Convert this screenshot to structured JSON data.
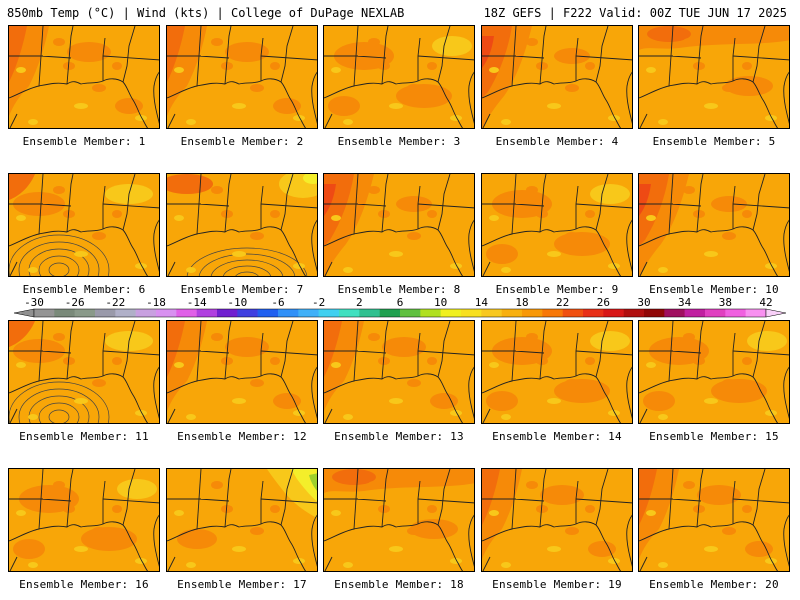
{
  "header": {
    "left": "850mb Temp (°C) | Wind (kts) | College of DuPage NEXLAB",
    "right": "18Z GEFS | F222 Valid: 00Z TUE JUN 17 2025"
  },
  "members": [
    {
      "label": "Ensemble Member: 1",
      "scheme": "warm-west"
    },
    {
      "label": "Ensemble Member: 2",
      "scheme": "warm-west"
    },
    {
      "label": "Ensemble Member: 3",
      "scheme": "mild"
    },
    {
      "label": "Ensemble Member: 4",
      "scheme": "hot-west"
    },
    {
      "label": "Ensemble Member: 5",
      "scheme": "warm-north"
    },
    {
      "label": "Ensemble Member: 6",
      "scheme": "low-circles"
    },
    {
      "label": "Ensemble Member: 7",
      "scheme": "yellow-ne-low"
    },
    {
      "label": "Ensemble Member: 8",
      "scheme": "hot-west"
    },
    {
      "label": "Ensemble Member: 9",
      "scheme": "mild"
    },
    {
      "label": "Ensemble Member: 10",
      "scheme": "hot-west"
    },
    {
      "label": "Ensemble Member: 11",
      "scheme": "low-circles"
    },
    {
      "label": "Ensemble Member: 12",
      "scheme": "warm-west"
    },
    {
      "label": "Ensemble Member: 13",
      "scheme": "warm-west"
    },
    {
      "label": "Ensemble Member: 14",
      "scheme": "mild"
    },
    {
      "label": "Ensemble Member: 15",
      "scheme": "mild"
    },
    {
      "label": "Ensemble Member: 16",
      "scheme": "mild"
    },
    {
      "label": "Ensemble Member: 17",
      "scheme": "yellow-ne"
    },
    {
      "label": "Ensemble Member: 18",
      "scheme": "warm-north"
    },
    {
      "label": "Ensemble Member: 19",
      "scheme": "warm-west"
    },
    {
      "label": "Ensemble Member: 20",
      "scheme": "warm-west"
    }
  ],
  "colorbar": {
    "ticks": [
      "-30",
      "-26",
      "-22",
      "-18",
      "-14",
      "-10",
      "-6",
      "-2",
      "2",
      "6",
      "10",
      "14",
      "18",
      "22",
      "26",
      "30",
      "34",
      "38",
      "42"
    ],
    "colors": [
      "#949494",
      "#7a8a7a",
      "#8a9a8a",
      "#9a9aaa",
      "#b0b0c8",
      "#c8a0e0",
      "#d890f0",
      "#e060e8",
      "#b040e0",
      "#7020d0",
      "#4040e0",
      "#2060f0",
      "#3090f8",
      "#40b0f8",
      "#40d0f0",
      "#40e0c0",
      "#30c090",
      "#20a050",
      "#60c040",
      "#b0e020",
      "#f0f020",
      "#f8e020",
      "#f8c820",
      "#f8b010",
      "#f89808",
      "#f87808",
      "#f05010",
      "#e83018",
      "#d81818",
      "#b01010",
      "#900808",
      "#a01060",
      "#c020a0",
      "#e040c0",
      "#f060e0",
      "#f890f0"
    ],
    "left_arrow": "#909090",
    "right_arrow": "#f8d0f8"
  },
  "palette": {
    "base": "#f8a608",
    "deep": "#f68a08",
    "hot": "#f26d0c",
    "veryhot": "#ee4a14",
    "yellow": "#f8c81a",
    "lightyellow": "#f4ee2a",
    "green": "#9ed02c",
    "coast": "#222222"
  }
}
